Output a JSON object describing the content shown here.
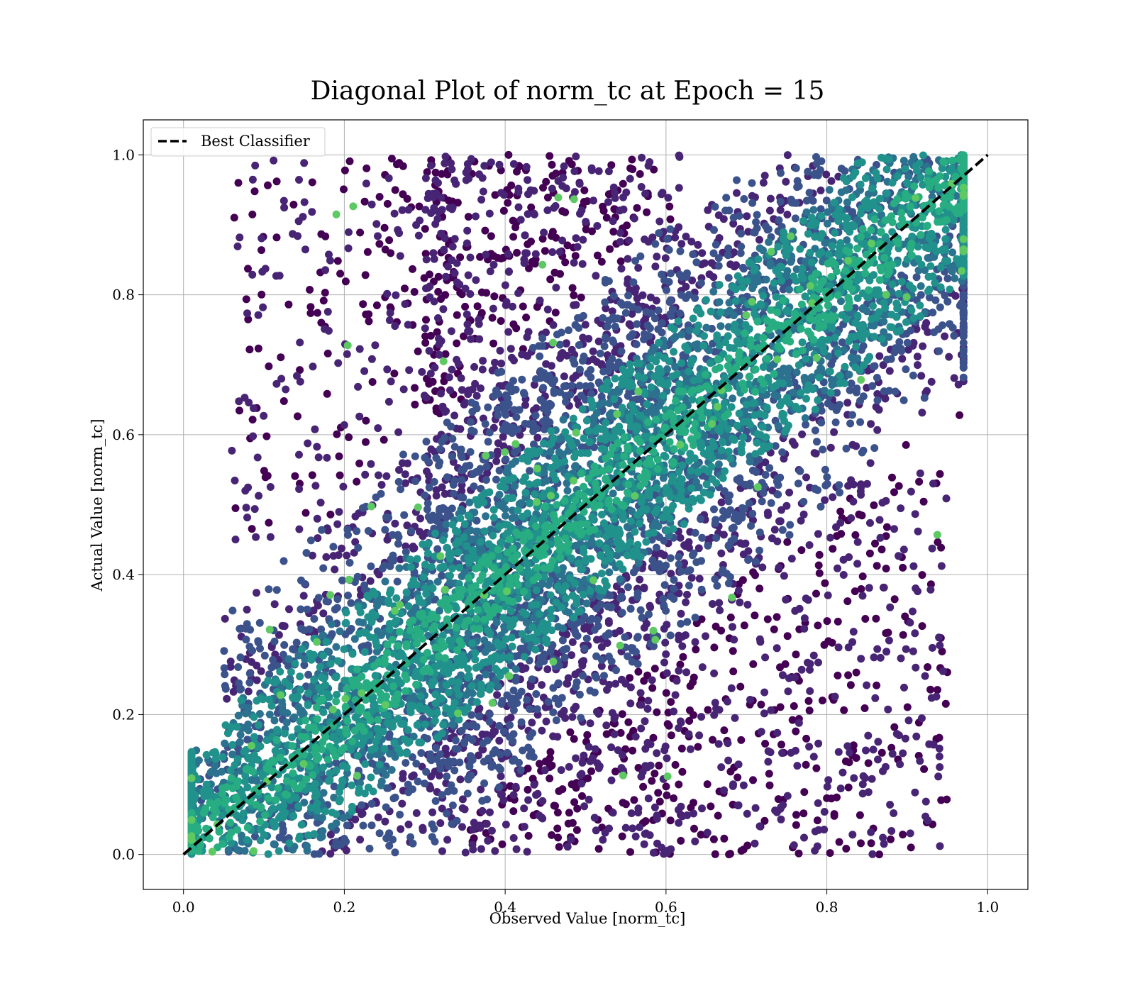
{
  "chart_data": {
    "type": "scatter",
    "title": "Diagonal Plot of norm_tc at Epoch = 15",
    "xlabel": "Observed Value [norm_tc]",
    "ylabel": "Actual Value [norm_tc]",
    "xlim": [
      -0.05,
      1.05
    ],
    "ylim": [
      -0.05,
      1.05
    ],
    "xticks": [
      0.0,
      0.2,
      0.4,
      0.6,
      0.8,
      1.0
    ],
    "yticks": [
      0.0,
      0.2,
      0.4,
      0.6,
      0.8,
      1.0
    ],
    "xtick_labels": [
      "0.0",
      "0.2",
      "0.4",
      "0.6",
      "0.8",
      "1.0"
    ],
    "ytick_labels": [
      "0.0",
      "0.2",
      "0.4",
      "0.6",
      "0.8",
      "1.0"
    ],
    "grid": true,
    "legend_position": "top-left",
    "colormap": "viridis",
    "colors": {
      "viridis_dark": "#440154",
      "viridis_low": "#482475",
      "viridis_midlow": "#3b528b",
      "viridis_mid": "#2c728e",
      "viridis_midhigh": "#21918c",
      "viridis_high": "#27ad81",
      "viridis_bright": "#5ec962",
      "diagonal_line": "#000000",
      "grid": "#b0b0b0"
    },
    "diagonal_line": {
      "name": "Best Classifier",
      "x": [
        0.0,
        1.0
      ],
      "y": [
        0.0,
        1.0
      ],
      "style": "dashed"
    },
    "point_distribution": {
      "n_points_approx": 30000,
      "x_range": [
        0.0,
        0.97
      ],
      "y_range": [
        0.0,
        1.0
      ],
      "description_bands": [
        {
          "x_range": [
            0.0,
            0.2
          ],
          "y_range": [
            0.0,
            0.3
          ],
          "density": "high",
          "color_level": "mid-high"
        },
        {
          "x_range": [
            0.2,
            0.6
          ],
          "y_range": [
            0.0,
            0.6
          ],
          "density": "very high",
          "color_level": "low"
        },
        {
          "x_range": [
            0.4,
            0.8
          ],
          "y_range": [
            0.4,
            1.0
          ],
          "density": "very high",
          "color_level": "low"
        },
        {
          "x_range": [
            0.7,
            0.97
          ],
          "y_range": [
            0.6,
            1.0
          ],
          "density": "high",
          "color_level": "mid-high"
        },
        {
          "x_range": [
            0.6,
            0.95
          ],
          "y_range": [
            0.0,
            0.5
          ],
          "density": "sparse",
          "color_level": "dark"
        },
        {
          "x_range": [
            0.05,
            0.35
          ],
          "y_range": [
            0.5,
            1.0
          ],
          "density": "sparse",
          "color_level": "dark"
        }
      ]
    }
  }
}
